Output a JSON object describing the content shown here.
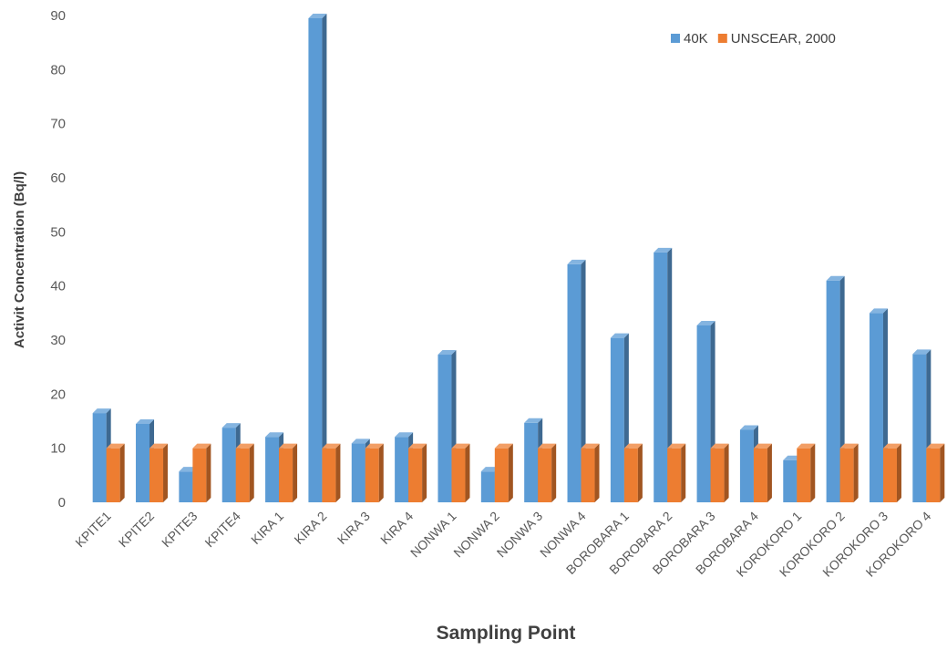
{
  "chart_data": {
    "type": "bar",
    "style": "3d-clustered-column",
    "categories": [
      "KPITE1",
      "KPITE2",
      "KPITE3",
      "KPITE4",
      "KIRA 1",
      "KIRA 2",
      "KIRA 3",
      "KIRA 4",
      "NONWA 1",
      "NONWA 2",
      "NONWA 3",
      "NONWA 4",
      "BOROBARA 1",
      "BOROBARA 2",
      "BOROBARA 3",
      "BOROBARA 4",
      "KOROKORO 1",
      "KOROKORO 2",
      "KOROKORO 3",
      "KOROKORO 4"
    ],
    "series": [
      {
        "name": "40K",
        "color": "#5b9bd5",
        "values": [
          16.5,
          14.5,
          5.7,
          13.8,
          12.1,
          89.5,
          10.9,
          12.1,
          27.3,
          5.7,
          14.7,
          44.0,
          30.4,
          46.2,
          32.7,
          13.4,
          7.8,
          41.0,
          35.0,
          27.4
        ]
      },
      {
        "name": "UNSCEAR, 2000",
        "color": "#ed7d31",
        "values": [
          10,
          10,
          10,
          10,
          10,
          10,
          10,
          10,
          10,
          10,
          10,
          10,
          10,
          10,
          10,
          10,
          10,
          10,
          10,
          10
        ]
      }
    ],
    "xlabel": "Sampling Point",
    "ylabel": "Activit Concentration (Bq/l)",
    "ylim": [
      0,
      90
    ],
    "yticks": [
      0,
      10,
      20,
      30,
      40,
      50,
      60,
      70,
      80,
      90
    ],
    "grid": false,
    "legend_position": "top-right"
  }
}
